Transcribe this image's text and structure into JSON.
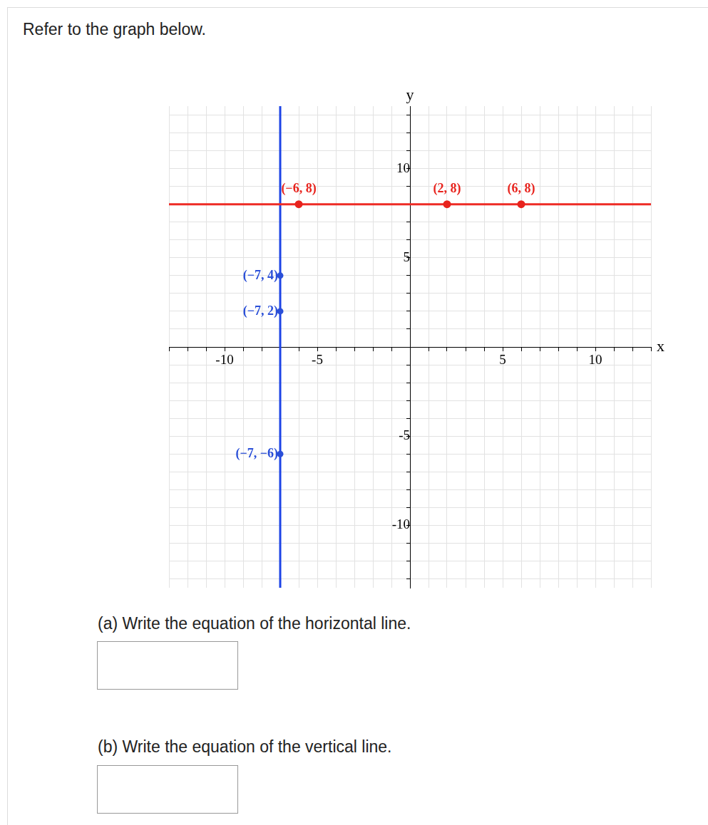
{
  "page": {
    "intro": "Refer to the graph below.",
    "questions": [
      "(a) Write the equation of the horizontal line.",
      "(b) Write the equation of the vertical line."
    ]
  },
  "chart_data": {
    "type": "scatter",
    "x_label": "x",
    "y_label": "y",
    "xlim": [
      -13,
      13
    ],
    "ylim": [
      -13.5,
      13.5
    ],
    "xticks": [
      -10,
      -5,
      5,
      10
    ],
    "yticks": [
      -10,
      -5,
      5,
      10
    ],
    "grid": true,
    "lines": [
      {
        "orientation": "horizontal",
        "value": 8,
        "color": "#ee2b25"
      },
      {
        "orientation": "vertical",
        "value": -7,
        "color": "#1d44e6"
      }
    ],
    "series": [
      {
        "color": "#e8231d",
        "marker": "circle",
        "x": [
          -6,
          2,
          6
        ],
        "values": [
          8,
          8,
          8
        ],
        "point_labels": [
          "(−6, 8)",
          "(2, 8)",
          "(6, 8)"
        ]
      },
      {
        "color": "#2a4fd8",
        "marker": "circle",
        "x": [
          -7,
          -7,
          -7
        ],
        "values": [
          4,
          2,
          -6
        ],
        "point_labels": [
          "(−7, 4)",
          "(−7, 2)",
          "(−7, −6)"
        ]
      }
    ]
  }
}
